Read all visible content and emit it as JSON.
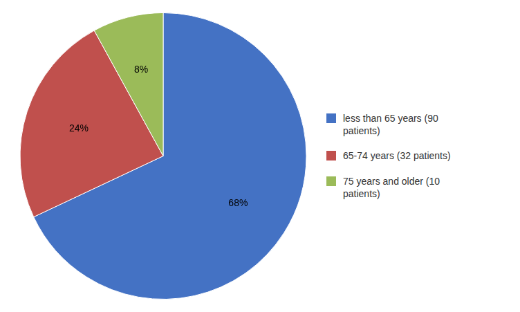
{
  "chart_data": {
    "type": "pie",
    "categories": [
      "less than 65 years (90\npatients)",
      "65-74 years (32 patients)",
      "75 years and older (10\npatients)"
    ],
    "values": [
      68,
      24,
      8
    ],
    "value_labels": [
      "68%",
      "24%",
      "8%"
    ],
    "colors": [
      "#4472C4",
      "#C0504D",
      "#9BBB59"
    ],
    "legend": "right",
    "data_labels": true
  }
}
